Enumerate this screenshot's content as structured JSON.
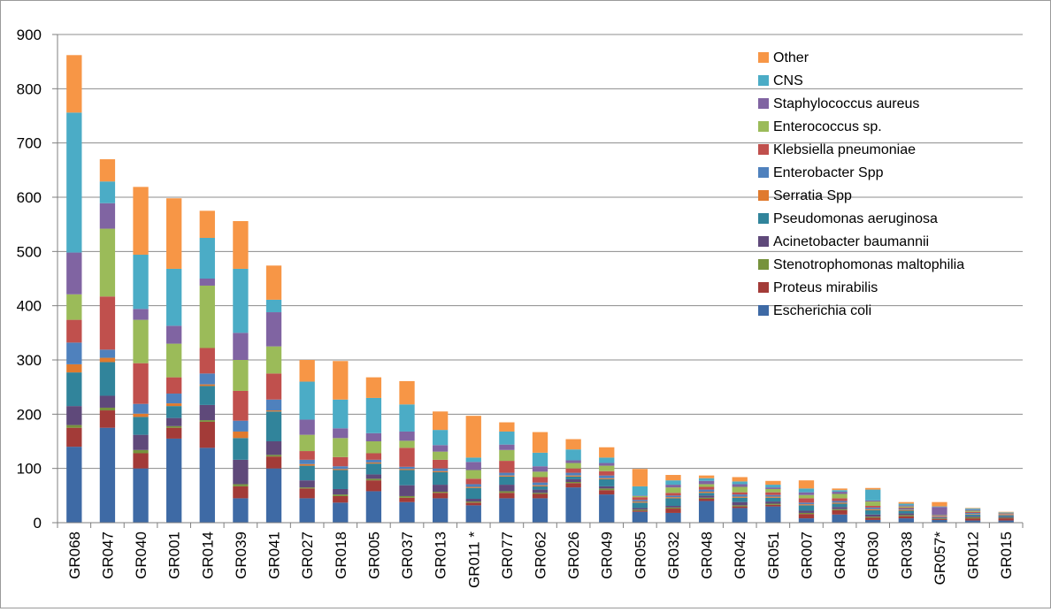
{
  "chart_data": {
    "type": "bar",
    "stacked": true,
    "title": "",
    "xlabel": "",
    "ylabel": "",
    "ylim": [
      0,
      900
    ],
    "yticks": [
      0,
      100,
      200,
      300,
      400,
      500,
      600,
      700,
      800,
      900
    ],
    "grid": true,
    "legend_position": "top-right",
    "categories": [
      "GR068",
      "GR047",
      "GR040",
      "GR001",
      "GR014",
      "GR039",
      "GR041",
      "GR027",
      "GR018",
      "GR005",
      "GR037",
      "GR013",
      "GR011 *",
      "GR077",
      "GR062",
      "GR026",
      "GR049",
      "GR055",
      "GR032",
      "GR048",
      "GR042",
      "GR051",
      "GR007",
      "GR043",
      "GR030",
      "GR038",
      "GR057*",
      "GR012",
      "GR015"
    ],
    "series": [
      {
        "name": "Escherichia coli",
        "color": "#4F81BD",
        "values": [
          140,
          175,
          100,
          155,
          138,
          45,
          100,
          45,
          37,
          58,
          38,
          45,
          32,
          45,
          45,
          65,
          52,
          20,
          18,
          40,
          27,
          30,
          8,
          15,
          5,
          8,
          5,
          4,
          4
        ]
      },
      {
        "name": "Proteus mirabilis",
        "color": "#C0504D",
        "values": [
          35,
          32,
          28,
          20,
          48,
          22,
          22,
          18,
          12,
          20,
          8,
          10,
          5,
          10,
          8,
          8,
          8,
          2,
          8,
          4,
          3,
          3,
          8,
          8,
          4,
          4,
          2,
          4,
          4
        ]
      },
      {
        "name": "Stenotrophomonas maltophilia",
        "color": "#9BBB59",
        "values": [
          5,
          5,
          6,
          3,
          3,
          4,
          3,
          2,
          3,
          3,
          3,
          2,
          2,
          3,
          2,
          2,
          3,
          2,
          2,
          2,
          2,
          2,
          2,
          2,
          2,
          2,
          1,
          2,
          1
        ]
      },
      {
        "name": "Acinetobacter baumannii",
        "color": "#8064A2",
        "values": [
          35,
          22,
          28,
          15,
          28,
          45,
          25,
          13,
          10,
          8,
          20,
          13,
          5,
          12,
          6,
          5,
          4,
          3,
          3,
          4,
          6,
          4,
          4,
          4,
          4,
          3,
          1,
          2,
          2
        ]
      },
      {
        "name": "Pseudomonas aeruginosa",
        "color": "#4BACC6",
        "values": [
          62,
          62,
          33,
          22,
          35,
          40,
          55,
          27,
          35,
          20,
          28,
          23,
          20,
          15,
          6,
          5,
          13,
          10,
          14,
          5,
          8,
          7,
          10,
          6,
          8,
          5,
          1,
          3,
          2
        ]
      },
      {
        "name": "Serratia Spp",
        "color": "#F79646",
        "values": [
          15,
          8,
          6,
          5,
          3,
          12,
          2,
          3,
          2,
          2,
          2,
          2,
          2,
          2,
          2,
          2,
          2,
          2,
          2,
          2,
          2,
          2,
          2,
          2,
          2,
          2,
          1,
          1,
          1
        ]
      },
      {
        "name": "Enterobacter Spp",
        "color": "#2C4D75",
        "values": [
          40,
          15,
          18,
          18,
          20,
          20,
          20,
          8,
          5,
          5,
          4,
          5,
          5,
          5,
          5,
          5,
          5,
          3,
          3,
          4,
          4,
          3,
          3,
          3,
          3,
          2,
          1,
          2,
          1
        ]
      },
      {
        "name": "Klebsiella pneumoniae",
        "color": "#772C2A",
        "values": [
          42,
          98,
          75,
          30,
          47,
          55,
          48,
          16,
          17,
          12,
          35,
          16,
          10,
          22,
          10,
          8,
          8,
          5,
          5,
          5,
          4,
          5,
          8,
          5,
          3,
          2,
          1,
          2,
          1
        ]
      },
      {
        "name": "Enterococcus sp.",
        "color": "#5F7530",
        "values": [
          47,
          125,
          80,
          62,
          115,
          57,
          50,
          30,
          35,
          22,
          13,
          15,
          16,
          20,
          10,
          10,
          10,
          2,
          10,
          5,
          10,
          6,
          6,
          8,
          8,
          2,
          1,
          2,
          1
        ]
      },
      {
        "name": "Staphylococcus aureus",
        "color": "#4D3B62",
        "values": [
          77,
          47,
          20,
          33,
          13,
          50,
          63,
          28,
          18,
          15,
          17,
          12,
          15,
          10,
          10,
          5,
          5,
          1,
          5,
          6,
          5,
          3,
          5,
          4,
          2,
          2,
          15,
          2,
          1
        ]
      },
      {
        "name": "CNS",
        "color": "#276A7C",
        "values": [
          258,
          40,
          100,
          105,
          75,
          118,
          23,
          70,
          53,
          65,
          50,
          28,
          8,
          24,
          25,
          20,
          10,
          17,
          8,
          5,
          5,
          5,
          7,
          3,
          20,
          3,
          1,
          2,
          1
        ]
      },
      {
        "name": "Other",
        "color": "#B65708",
        "values": [
          106,
          41,
          125,
          130,
          50,
          88,
          63,
          40,
          71,
          38,
          43,
          34,
          77,
          17,
          38,
          19,
          19,
          32,
          10,
          5,
          8,
          7,
          15,
          3,
          3,
          3,
          8,
          1,
          1
        ]
      }
    ],
    "legend_order": [
      "Other",
      "CNS",
      "Staphylococcus aureus",
      "Enterococcus sp.",
      "Klebsiella pneumoniae",
      "Enterobacter Spp",
      "Serratia Spp",
      "Pseudomonas aeruginosa",
      "Acinetobacter baumannii",
      "Stenotrophomonas maltophilia",
      "Proteus mirabilis",
      "Escherichia coli"
    ],
    "display_colors": {
      "Other": "#F79646",
      "CNS": "#4BACC6",
      "Staphylococcus aureus": "#8064A2",
      "Enterococcus sp.": "#9BBB59",
      "Klebsiella pneumoniae": "#C0504D",
      "Enterobacter Spp": "#4F81BD",
      "Serratia Spp": "#E07A2E",
      "Pseudomonas aeruginosa": "#31849B",
      "Acinetobacter baumannii": "#5F497A",
      "Stenotrophomonas maltophilia": "#76923C",
      "Proteus mirabilis": "#A33B38",
      "Escherichia coli": "#3E6AA5"
    }
  }
}
